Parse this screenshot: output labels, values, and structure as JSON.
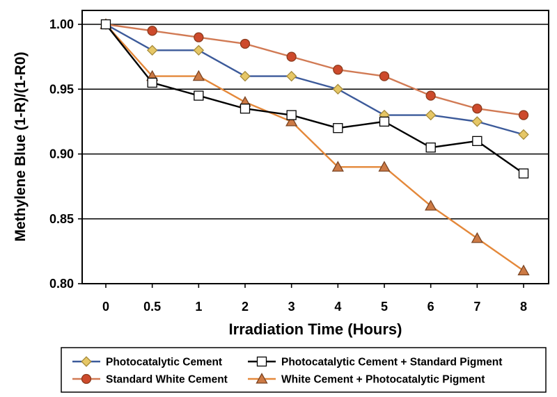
{
  "chart_data": {
    "type": "line",
    "title": "",
    "xlabel": "Irradiation Time (Hours)",
    "ylabel": "Methylene Blue (1-R)/(1-R0)",
    "categories": [
      "0",
      "0.5",
      "1",
      "2",
      "3",
      "4",
      "5",
      "6",
      "7",
      "8"
    ],
    "ylim": [
      0.8,
      1.0
    ],
    "yticks": [
      "0.80",
      "0.85",
      "0.90",
      "0.95",
      "1.00"
    ],
    "grid": "horizontal",
    "legend_position": "bottom",
    "series": [
      {
        "name": "Photocatalytic Cement",
        "color": "#3c5a9a",
        "marker": "diamond",
        "marker_fill": "#e6c766",
        "values": [
          1.0,
          0.98,
          0.98,
          0.96,
          0.96,
          0.95,
          0.93,
          0.93,
          0.925,
          0.915
        ]
      },
      {
        "name": "Standard White Cement",
        "color": "#d17a54",
        "marker": "circle",
        "marker_fill": "#cd4a2c",
        "values": [
          1.0,
          0.995,
          0.99,
          0.985,
          0.975,
          0.965,
          0.96,
          0.945,
          0.935,
          0.93
        ]
      },
      {
        "name": "Photocatalytic Cement + Standard Pigment",
        "color": "#000000",
        "marker": "square",
        "marker_fill": "#ffffff",
        "values": [
          1.0,
          0.955,
          0.945,
          0.935,
          0.93,
          0.92,
          0.925,
          0.905,
          0.91,
          0.885
        ]
      },
      {
        "name": "White Cement +  Photocatalytic Pigment",
        "color": "#e4883a",
        "marker": "triangle",
        "marker_fill": "#cd7a45",
        "values": [
          1.0,
          0.96,
          0.96,
          0.94,
          0.925,
          0.89,
          0.89,
          0.86,
          0.835,
          0.81
        ]
      }
    ]
  }
}
